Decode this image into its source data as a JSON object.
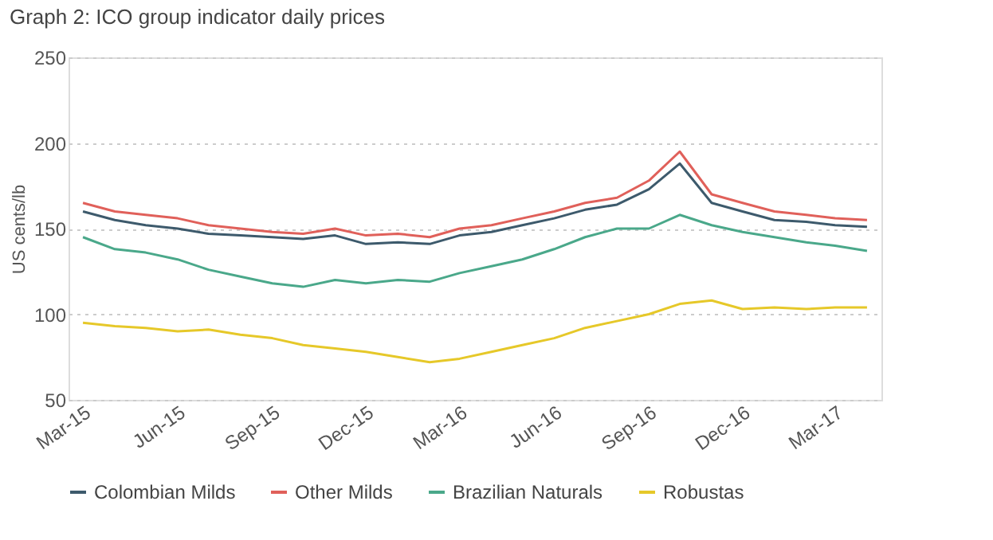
{
  "chart_data": {
    "type": "line",
    "title": "Graph 2: ICO group indicator daily prices",
    "ylabel": "US cents/lb",
    "x": [
      "2015-03",
      "2015-04",
      "2015-05",
      "2015-06",
      "2015-07",
      "2015-08",
      "2015-09",
      "2015-10",
      "2015-11",
      "2015-12",
      "2016-01",
      "2016-02",
      "2016-03",
      "2016-04",
      "2016-05",
      "2016-06",
      "2016-07",
      "2016-08",
      "2016-09",
      "2016-10",
      "2016-11",
      "2016-12",
      "2017-01",
      "2017-02",
      "2017-03",
      "2017-04"
    ],
    "series": [
      {
        "name": "Colombian Milds",
        "color": "#3d5a6c",
        "values": [
          160,
          155,
          152,
          150,
          147,
          146,
          145,
          144,
          146,
          141,
          142,
          141,
          146,
          148,
          152,
          156,
          161,
          164,
          173,
          188,
          165,
          160,
          155,
          154,
          152,
          151
        ]
      },
      {
        "name": "Other Milds",
        "color": "#e0605a",
        "values": [
          165,
          160,
          158,
          156,
          152,
          150,
          148,
          147,
          150,
          146,
          147,
          145,
          150,
          152,
          156,
          160,
          165,
          168,
          178,
          195,
          170,
          165,
          160,
          158,
          156,
          155
        ]
      },
      {
        "name": "Brazilian Naturals",
        "color": "#4aa88a",
        "values": [
          145,
          138,
          136,
          132,
          126,
          122,
          118,
          116,
          120,
          118,
          120,
          119,
          124,
          128,
          132,
          138,
          145,
          150,
          150,
          158,
          152,
          148,
          145,
          142,
          140,
          137
        ]
      },
      {
        "name": "Robustas",
        "color": "#e6c829",
        "values": [
          95,
          93,
          92,
          90,
          91,
          88,
          86,
          82,
          80,
          78,
          75,
          72,
          74,
          78,
          82,
          86,
          92,
          96,
          100,
          106,
          108,
          103,
          104,
          103,
          104,
          104
        ]
      }
    ],
    "xlim": [
      "2015-02-15",
      "2017-04-15"
    ],
    "xticks": [
      {
        "value": "2015-03",
        "label": "Mar-15"
      },
      {
        "value": "2015-06",
        "label": "Jun-15"
      },
      {
        "value": "2015-09",
        "label": "Sep-15"
      },
      {
        "value": "2015-12",
        "label": "Dec-15"
      },
      {
        "value": "2016-03",
        "label": "Mar-16"
      },
      {
        "value": "2016-06",
        "label": "Jun-16"
      },
      {
        "value": "2016-09",
        "label": "Sep-16"
      },
      {
        "value": "2016-12",
        "label": "Dec-16"
      },
      {
        "value": "2017-03",
        "label": "Mar-17"
      }
    ],
    "ylim": [
      50,
      250
    ],
    "yticks": [
      50,
      100,
      150,
      200,
      250
    ],
    "grid": "y",
    "legend": "bottom",
    "marker": "none",
    "line_style": "solid"
  }
}
